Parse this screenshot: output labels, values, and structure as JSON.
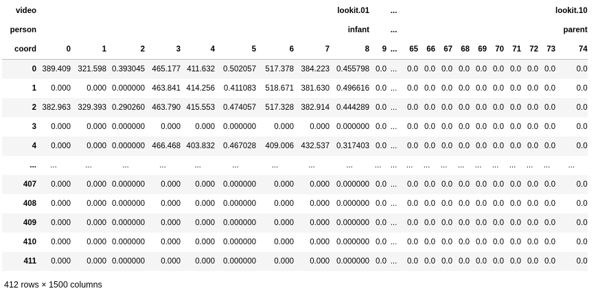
{
  "table": {
    "header_rows": [
      {
        "label": "video",
        "cells": [
          "",
          "",
          "",
          "",
          "",
          "",
          "",
          "",
          "lookit.01",
          "",
          "...",
          "",
          "",
          "",
          "",
          "",
          "",
          "",
          "",
          "",
          "lookit.10"
        ]
      },
      {
        "label": "person",
        "cells": [
          "",
          "",
          "",
          "",
          "",
          "",
          "",
          "",
          "infant",
          "",
          "...",
          "",
          "",
          "",
          "",
          "",
          "",
          "",
          "",
          "",
          "parent"
        ]
      },
      {
        "label": "coord",
        "cells": [
          "0",
          "1",
          "2",
          "3",
          "4",
          "5",
          "6",
          "7",
          "8",
          "9",
          "...",
          "65",
          "66",
          "67",
          "68",
          "69",
          "70",
          "71",
          "72",
          "73",
          "74"
        ]
      }
    ],
    "rows": [
      {
        "index": "0",
        "cells": [
          "389.409",
          "321.598",
          "0.393045",
          "465.177",
          "411.632",
          "0.502057",
          "517.378",
          "384.223",
          "0.455798",
          "0.0",
          "...",
          "0.0",
          "0.0",
          "0.0",
          "0.0",
          "0.0",
          "0.0",
          "0.0",
          "0.0",
          "0.0",
          "0.0"
        ]
      },
      {
        "index": "1",
        "cells": [
          "0.000",
          "0.000",
          "0.000000",
          "463.841",
          "414.256",
          "0.411083",
          "518.671",
          "381.630",
          "0.496616",
          "0.0",
          "...",
          "0.0",
          "0.0",
          "0.0",
          "0.0",
          "0.0",
          "0.0",
          "0.0",
          "0.0",
          "0.0",
          "0.0"
        ]
      },
      {
        "index": "2",
        "cells": [
          "382.963",
          "329.393",
          "0.290260",
          "463.790",
          "415.553",
          "0.474057",
          "517.328",
          "382.914",
          "0.444289",
          "0.0",
          "...",
          "0.0",
          "0.0",
          "0.0",
          "0.0",
          "0.0",
          "0.0",
          "0.0",
          "0.0",
          "0.0",
          "0.0"
        ]
      },
      {
        "index": "3",
        "cells": [
          "0.000",
          "0.000",
          "0.000000",
          "0.000",
          "0.000",
          "0.000000",
          "0.000",
          "0.000",
          "0.000000",
          "0.0",
          "...",
          "0.0",
          "0.0",
          "0.0",
          "0.0",
          "0.0",
          "0.0",
          "0.0",
          "0.0",
          "0.0",
          "0.0"
        ]
      },
      {
        "index": "4",
        "cells": [
          "0.000",
          "0.000",
          "0.000000",
          "466.468",
          "403.832",
          "0.467028",
          "409.006",
          "432.537",
          "0.317403",
          "0.0",
          "...",
          "0.0",
          "0.0",
          "0.0",
          "0.0",
          "0.0",
          "0.0",
          "0.0",
          "0.0",
          "0.0",
          "0.0"
        ]
      },
      {
        "index": "...",
        "cells": [
          "...",
          "...",
          "...",
          "...",
          "...",
          "...",
          "...",
          "...",
          "...",
          "...",
          "...",
          "...",
          "...",
          "...",
          "...",
          "...",
          "...",
          "...",
          "...",
          "...",
          "..."
        ]
      },
      {
        "index": "407",
        "cells": [
          "0.000",
          "0.000",
          "0.000000",
          "0.000",
          "0.000",
          "0.000000",
          "0.000",
          "0.000",
          "0.000000",
          "0.0",
          "...",
          "0.0",
          "0.0",
          "0.0",
          "0.0",
          "0.0",
          "0.0",
          "0.0",
          "0.0",
          "0.0",
          "0.0"
        ]
      },
      {
        "index": "408",
        "cells": [
          "0.000",
          "0.000",
          "0.000000",
          "0.000",
          "0.000",
          "0.000000",
          "0.000",
          "0.000",
          "0.000000",
          "0.0",
          "...",
          "0.0",
          "0.0",
          "0.0",
          "0.0",
          "0.0",
          "0.0",
          "0.0",
          "0.0",
          "0.0",
          "0.0"
        ]
      },
      {
        "index": "409",
        "cells": [
          "0.000",
          "0.000",
          "0.000000",
          "0.000",
          "0.000",
          "0.000000",
          "0.000",
          "0.000",
          "0.000000",
          "0.0",
          "...",
          "0.0",
          "0.0",
          "0.0",
          "0.0",
          "0.0",
          "0.0",
          "0.0",
          "0.0",
          "0.0",
          "0.0"
        ]
      },
      {
        "index": "410",
        "cells": [
          "0.000",
          "0.000",
          "0.000000",
          "0.000",
          "0.000",
          "0.000000",
          "0.000",
          "0.000",
          "0.000000",
          "0.0",
          "...",
          "0.0",
          "0.0",
          "0.0",
          "0.0",
          "0.0",
          "0.0",
          "0.0",
          "0.0",
          "0.0",
          "0.0"
        ]
      },
      {
        "index": "411",
        "cells": [
          "0.000",
          "0.000",
          "0.000000",
          "0.000",
          "0.000",
          "0.000000",
          "0.000",
          "0.000",
          "0.000000",
          "0.0",
          "...",
          "0.0",
          "0.0",
          "0.0",
          "0.0",
          "0.0",
          "0.0",
          "0.0",
          "0.0",
          "0.0",
          "0.0"
        ]
      }
    ],
    "footer": "412 rows × 1500 columns"
  }
}
